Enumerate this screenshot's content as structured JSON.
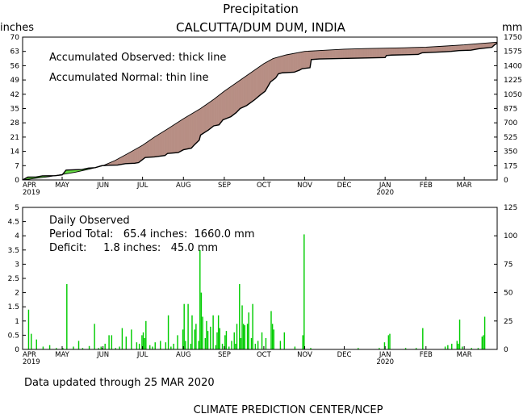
{
  "header": {
    "title": "Precipitation",
    "subtitle": "CALCUTTA/DUM DUM, INDIA",
    "left_unit": "inches",
    "right_unit": "mm"
  },
  "top_panel": {
    "legend_observed": "Accumulated Observed: thick line",
    "legend_normal": "Accumulated Normal: thin line"
  },
  "bottom_panel": {
    "label": "Daily Observed",
    "period_total": "Period Total:   65.4 inches:  1660.0 mm",
    "deficit": "Deficit:     1.8 inches:   45.0 mm"
  },
  "footer": {
    "updated": "Data updated through 25 MAR 2020",
    "credit": "CLIMATE PREDICTION CENTER/NCEP"
  },
  "colors": {
    "fill_surplus": "#66dd44",
    "fill_deficit": "#b78e84",
    "bar": "#00cc00",
    "axis": "#000000"
  },
  "chart_data": [
    {
      "type": "area",
      "title": "Precipitation",
      "subtitle": "CALCUTTA/DUM DUM, INDIA",
      "ylabel_left": "inches",
      "ylabel_right": "mm",
      "ylim": [
        0,
        70
      ],
      "ylim_right": [
        0,
        1750
      ],
      "xlim_days": [
        0,
        360
      ],
      "left_ticks": [
        "0",
        "7",
        "14",
        "21",
        "28",
        "35",
        "42",
        "49",
        "56",
        "63",
        "70"
      ],
      "right_ticks": [
        "0",
        "175",
        "350",
        "525",
        "700",
        "875",
        "1050",
        "1225",
        "1400",
        "1575",
        "1750"
      ],
      "months": [
        {
          "label": "APR",
          "day": 0,
          "year": "2019"
        },
        {
          "label": "MAY",
          "day": 30
        },
        {
          "label": "JUN",
          "day": 61
        },
        {
          "label": "JUL",
          "day": 91
        },
        {
          "label": "AUG",
          "day": 122
        },
        {
          "label": "SEP",
          "day": 153
        },
        {
          "label": "OCT",
          "day": 183
        },
        {
          "label": "NOV",
          "day": 214
        },
        {
          "label": "DEC",
          "day": 244
        },
        {
          "label": "JAN",
          "day": 275,
          "year": "2020"
        },
        {
          "label": "FEB",
          "day": 306
        },
        {
          "label": "MAR",
          "day": 335
        }
      ],
      "series": [
        {
          "name": "Accumulated Normal",
          "points": [
            [
              0,
              0
            ],
            [
              10,
              0.8
            ],
            [
              20,
              1.6
            ],
            [
              30,
              2.7
            ],
            [
              40,
              3.8
            ],
            [
              50,
              5.2
            ],
            [
              61,
              7.0
            ],
            [
              70,
              9.5
            ],
            [
              80,
              13.0
            ],
            [
              91,
              17.0
            ],
            [
              100,
              21.0
            ],
            [
              110,
              25.0
            ],
            [
              122,
              30.0
            ],
            [
              135,
              35.0
            ],
            [
              145,
              39.5
            ],
            [
              153,
              43.5
            ],
            [
              163,
              48.0
            ],
            [
              173,
              52.5
            ],
            [
              183,
              57.0
            ],
            [
              190,
              59.5
            ],
            [
              200,
              61.3
            ],
            [
              214,
              63.0
            ],
            [
              230,
              63.6
            ],
            [
              244,
              64.1
            ],
            [
              260,
              64.4
            ],
            [
              275,
              64.6
            ],
            [
              290,
              64.8
            ],
            [
              306,
              65.1
            ],
            [
              320,
              65.6
            ],
            [
              335,
              66.2
            ],
            [
              346,
              66.8
            ],
            [
              356,
              67.3
            ],
            [
              360,
              67.5
            ]
          ]
        },
        {
          "name": "Accumulated Observed",
          "points": [
            [
              0,
              0
            ],
            [
              4,
              1.4
            ],
            [
              10,
              1.4
            ],
            [
              15,
              2.0
            ],
            [
              25,
              2.1
            ],
            [
              30,
              2.5
            ],
            [
              33,
              4.8
            ],
            [
              40,
              5.0
            ],
            [
              45,
              5.1
            ],
            [
              50,
              5.8
            ],
            [
              55,
              6.0
            ],
            [
              60,
              7.0
            ],
            [
              65,
              7.2
            ],
            [
              72,
              7.3
            ],
            [
              78,
              8.0
            ],
            [
              85,
              8.2
            ],
            [
              88,
              8.5
            ],
            [
              90,
              9.5
            ],
            [
              93,
              11.0
            ],
            [
              100,
              11.3
            ],
            [
              108,
              12.0
            ],
            [
              110,
              13.0
            ],
            [
              118,
              13.4
            ],
            [
              122,
              14.8
            ],
            [
              128,
              15.6
            ],
            [
              130,
              17.0
            ],
            [
              134,
              19.5
            ],
            [
              135,
              22.0
            ],
            [
              141,
              24.5
            ],
            [
              145,
              26.5
            ],
            [
              149,
              27.0
            ],
            [
              152,
              29.5
            ],
            [
              158,
              31.0
            ],
            [
              162,
              33.0
            ],
            [
              165,
              35.0
            ],
            [
              170,
              36.5
            ],
            [
              176,
              39.3
            ],
            [
              180,
              41.5
            ],
            [
              184,
              43.5
            ],
            [
              188,
              48.0
            ],
            [
              192,
              50.0
            ],
            [
              194,
              52.0
            ],
            [
              197,
              52.5
            ],
            [
              206,
              52.8
            ],
            [
              210,
              53.8
            ],
            [
              212,
              54.5
            ],
            [
              218,
              55.0
            ],
            [
              219,
              59.0
            ],
            [
              225,
              59.3
            ],
            [
              275,
              60.0
            ],
            [
              276,
              61.0
            ],
            [
              280,
              61.2
            ],
            [
              300,
              61.5
            ],
            [
              303,
              62.3
            ],
            [
              320,
              62.8
            ],
            [
              325,
              63.0
            ],
            [
              331,
              63.4
            ],
            [
              340,
              63.6
            ],
            [
              346,
              64.3
            ],
            [
              350,
              64.6
            ],
            [
              356,
              65.0
            ],
            [
              358,
              66.2
            ],
            [
              360,
              67.0
            ]
          ]
        }
      ]
    },
    {
      "type": "bar",
      "title": "Daily Observed",
      "ylabel_left": "inches",
      "ylabel_right": "mm",
      "ylim": [
        0,
        5
      ],
      "ylim_right": [
        0,
        125
      ],
      "left_ticks": [
        "0",
        "0.5",
        "1",
        "1.5",
        "2",
        "2.5",
        "3",
        "3.5",
        "4",
        "4.5",
        "5"
      ],
      "right_ticks": [
        "0",
        "25",
        "50",
        "75",
        "100",
        "125"
      ],
      "period_total_inches": 65.4,
      "period_total_mm": 1660.0,
      "deficit_inches": 1.8,
      "deficit_mm": 45.0,
      "bars": [
        [
          4,
          1.4
        ],
        [
          6,
          0.55
        ],
        [
          10,
          0.35
        ],
        [
          15,
          0.1
        ],
        [
          20,
          0.15
        ],
        [
          25,
          0.05
        ],
        [
          30,
          0.05
        ],
        [
          33,
          2.3
        ],
        [
          38,
          0.1
        ],
        [
          42,
          0.3
        ],
        [
          45,
          0.05
        ],
        [
          50,
          0.12
        ],
        [
          54,
          0.9
        ],
        [
          57,
          0.05
        ],
        [
          59,
          0.1
        ],
        [
          60,
          0.05
        ],
        [
          62,
          0.2
        ],
        [
          65,
          0.5
        ],
        [
          67,
          0.5
        ],
        [
          70,
          0.05
        ],
        [
          73,
          0.1
        ],
        [
          75,
          0.75
        ],
        [
          78,
          0.45
        ],
        [
          82,
          0.7
        ],
        [
          86,
          0.25
        ],
        [
          88,
          0.2
        ],
        [
          90,
          0.5
        ],
        [
          91,
          0.6
        ],
        [
          92,
          0.4
        ],
        [
          93,
          1.0
        ],
        [
          96,
          0.15
        ],
        [
          98,
          0.1
        ],
        [
          100,
          0.25
        ],
        [
          104,
          0.3
        ],
        [
          108,
          0.25
        ],
        [
          110,
          1.2
        ],
        [
          112,
          0.1
        ],
        [
          114,
          0.2
        ],
        [
          117,
          0.5
        ],
        [
          121,
          0.7
        ],
        [
          122,
          1.6
        ],
        [
          123,
          0.3
        ],
        [
          125,
          1.6
        ],
        [
          127,
          0.2
        ],
        [
          128,
          1.2
        ],
        [
          130,
          0.7
        ],
        [
          131,
          0.9
        ],
        [
          133,
          0.3
        ],
        [
          134,
          3.5
        ],
        [
          135,
          2.0
        ],
        [
          136,
          1.15
        ],
        [
          138,
          0.4
        ],
        [
          139,
          1.0
        ],
        [
          140,
          0.65
        ],
        [
          142,
          0.8
        ],
        [
          144,
          1.2
        ],
        [
          146,
          0.15
        ],
        [
          147,
          0.6
        ],
        [
          148,
          1.2
        ],
        [
          149,
          0.75
        ],
        [
          151,
          0.2
        ],
        [
          153,
          0.5
        ],
        [
          154,
          0.65
        ],
        [
          156,
          0.1
        ],
        [
          158,
          0.3
        ],
        [
          160,
          0.6
        ],
        [
          161,
          0.2
        ],
        [
          162,
          0.9
        ],
        [
          164,
          2.3
        ],
        [
          165,
          0.4
        ],
        [
          166,
          1.55
        ],
        [
          167,
          0.9
        ],
        [
          168,
          0.85
        ],
        [
          170,
          0.9
        ],
        [
          171,
          1.3
        ],
        [
          173,
          0.4
        ],
        [
          174,
          1.6
        ],
        [
          176,
          0.2
        ],
        [
          178,
          0.3
        ],
        [
          181,
          0.6
        ],
        [
          184,
          0.4
        ],
        [
          188,
          1.35
        ],
        [
          189,
          0.9
        ],
        [
          190,
          0.7
        ],
        [
          195,
          0.3
        ],
        [
          198,
          0.6
        ],
        [
          206,
          0.1
        ],
        [
          212,
          0.5
        ],
        [
          213,
          4.05
        ],
        [
          218,
          0.05
        ],
        [
          254,
          0.05
        ],
        [
          270,
          0.05
        ],
        [
          274,
          0.25
        ],
        [
          277,
          0.5
        ],
        [
          278,
          0.55
        ],
        [
          290,
          0.05
        ],
        [
          298,
          0.05
        ],
        [
          303,
          0.75
        ],
        [
          320,
          0.1
        ],
        [
          322,
          0.15
        ],
        [
          325,
          0.2
        ],
        [
          329,
          0.3
        ],
        [
          330,
          0.2
        ],
        [
          331,
          1.05
        ],
        [
          333,
          0.1
        ],
        [
          340,
          0.05
        ],
        [
          345,
          0.05
        ],
        [
          348,
          0.45
        ],
        [
          349,
          0.5
        ],
        [
          350,
          1.15
        ]
      ]
    }
  ]
}
